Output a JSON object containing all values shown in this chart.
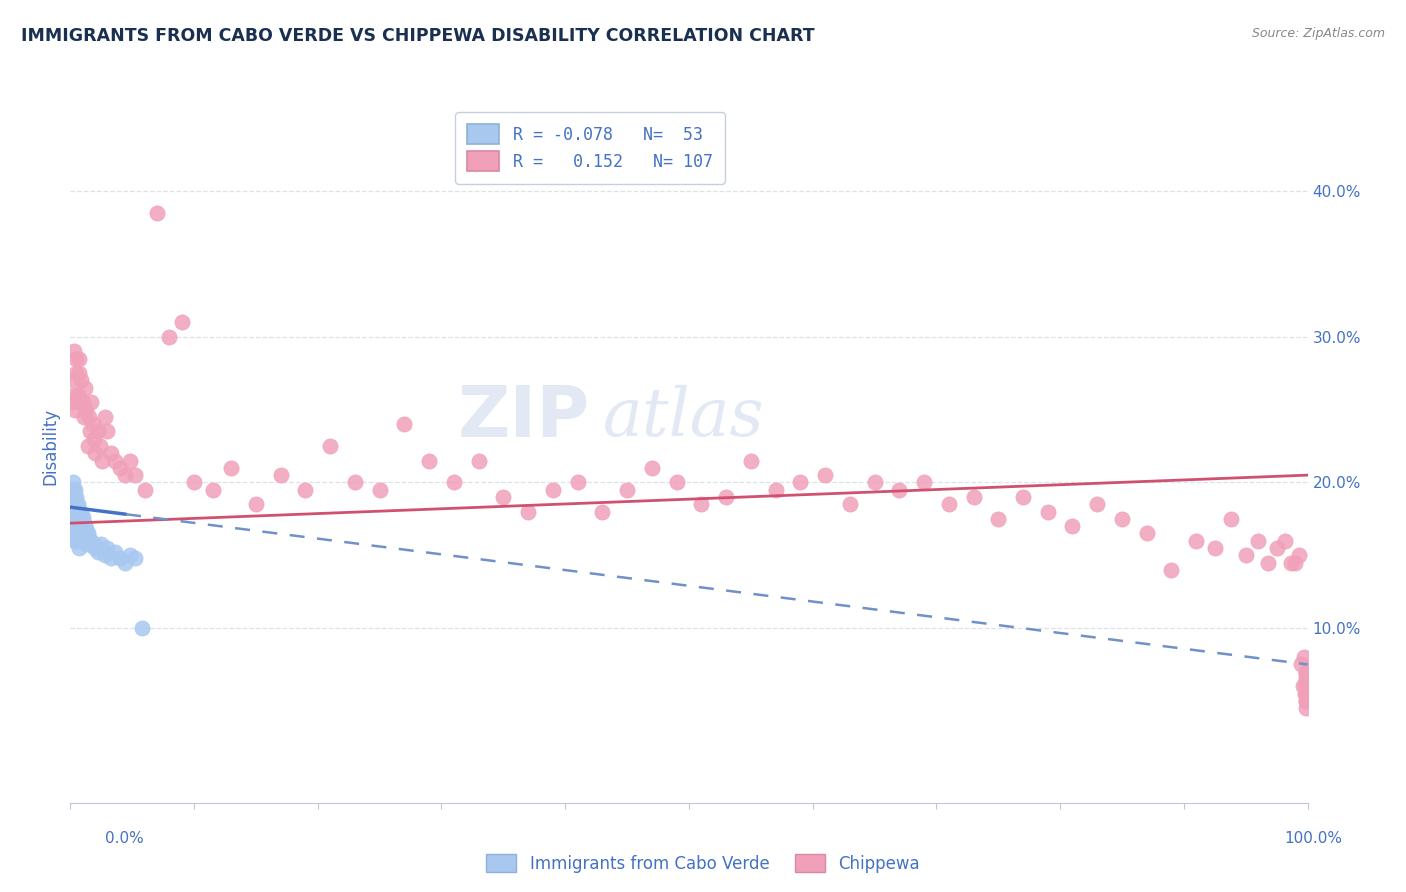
{
  "title": "IMMIGRANTS FROM CABO VERDE VS CHIPPEWA DISABILITY CORRELATION CHART",
  "source_text": "Source: ZipAtlas.com",
  "ylabel": "Disability",
  "ytick_labels": [
    "10.0%",
    "20.0%",
    "30.0%",
    "40.0%"
  ],
  "ytick_values": [
    0.1,
    0.2,
    0.3,
    0.4
  ],
  "xlim": [
    0.0,
    1.0
  ],
  "ylim": [
    -0.02,
    0.47
  ],
  "legend_blue_r": "-0.078",
  "legend_blue_n": "53",
  "legend_pink_r": "0.152",
  "legend_pink_n": "107",
  "blue_scatter_color": "#a8c8f0",
  "pink_scatter_color": "#f0a0b8",
  "blue_line_color": "#4472c4",
  "pink_line_color": "#d05070",
  "blue_dashed_color": "#7090c8",
  "watermark_zip": "ZIP",
  "watermark_atlas": "atlas",
  "watermark_color_zip": "#c8d8ee",
  "watermark_color_atlas": "#c8d8ee",
  "background_color": "#ffffff",
  "grid_color": "#d8dfe8",
  "title_color": "#1a3050",
  "axis_label_color": "#4472c4",
  "blue_scatter_x": [
    0.001,
    0.001,
    0.002,
    0.002,
    0.002,
    0.003,
    0.003,
    0.003,
    0.003,
    0.004,
    0.004,
    0.004,
    0.004,
    0.005,
    0.005,
    0.005,
    0.005,
    0.006,
    0.006,
    0.006,
    0.007,
    0.007,
    0.007,
    0.007,
    0.008,
    0.008,
    0.009,
    0.009,
    0.01,
    0.01,
    0.011,
    0.012,
    0.012,
    0.013,
    0.013,
    0.014,
    0.015,
    0.016,
    0.017,
    0.018,
    0.019,
    0.02,
    0.022,
    0.025,
    0.028,
    0.03,
    0.033,
    0.036,
    0.04,
    0.044,
    0.048,
    0.052,
    0.058
  ],
  "blue_scatter_y": [
    0.195,
    0.185,
    0.2,
    0.19,
    0.175,
    0.195,
    0.185,
    0.17,
    0.165,
    0.195,
    0.185,
    0.175,
    0.16,
    0.19,
    0.18,
    0.17,
    0.16,
    0.185,
    0.178,
    0.165,
    0.182,
    0.175,
    0.168,
    0.155,
    0.18,
    0.172,
    0.178,
    0.165,
    0.176,
    0.165,
    0.172,
    0.17,
    0.16,
    0.168,
    0.158,
    0.165,
    0.162,
    0.158,
    0.16,
    0.156,
    0.158,
    0.155,
    0.152,
    0.158,
    0.15,
    0.155,
    0.148,
    0.152,
    0.148,
    0.145,
    0.15,
    0.148,
    0.1
  ],
  "pink_scatter_x": [
    0.001,
    0.002,
    0.003,
    0.003,
    0.004,
    0.005,
    0.005,
    0.006,
    0.007,
    0.007,
    0.008,
    0.009,
    0.01,
    0.011,
    0.012,
    0.013,
    0.014,
    0.015,
    0.016,
    0.017,
    0.018,
    0.019,
    0.02,
    0.022,
    0.024,
    0.026,
    0.028,
    0.03,
    0.033,
    0.036,
    0.04,
    0.044,
    0.048,
    0.052,
    0.06,
    0.07,
    0.08,
    0.09,
    0.1,
    0.115,
    0.13,
    0.15,
    0.17,
    0.19,
    0.21,
    0.23,
    0.25,
    0.27,
    0.29,
    0.31,
    0.33,
    0.35,
    0.37,
    0.39,
    0.41,
    0.43,
    0.45,
    0.47,
    0.49,
    0.51,
    0.53,
    0.55,
    0.57,
    0.59,
    0.61,
    0.63,
    0.65,
    0.67,
    0.69,
    0.71,
    0.73,
    0.75,
    0.77,
    0.79,
    0.81,
    0.83,
    0.85,
    0.87,
    0.89,
    0.91,
    0.925,
    0.938,
    0.95,
    0.96,
    0.968,
    0.975,
    0.982,
    0.987,
    0.99,
    0.993,
    0.995,
    0.996,
    0.997,
    0.998,
    0.999,
    0.999,
    0.999,
    0.999,
    0.999,
    0.999,
    0.999,
    0.999,
    0.999,
    0.999,
    0.999,
    0.999,
    0.999
  ],
  "pink_scatter_y": [
    0.255,
    0.27,
    0.26,
    0.29,
    0.25,
    0.285,
    0.275,
    0.26,
    0.285,
    0.275,
    0.255,
    0.27,
    0.255,
    0.245,
    0.265,
    0.25,
    0.225,
    0.245,
    0.235,
    0.255,
    0.24,
    0.23,
    0.22,
    0.235,
    0.225,
    0.215,
    0.245,
    0.235,
    0.22,
    0.215,
    0.21,
    0.205,
    0.215,
    0.205,
    0.195,
    0.385,
    0.3,
    0.31,
    0.2,
    0.195,
    0.21,
    0.185,
    0.205,
    0.195,
    0.225,
    0.2,
    0.195,
    0.24,
    0.215,
    0.2,
    0.215,
    0.19,
    0.18,
    0.195,
    0.2,
    0.18,
    0.195,
    0.21,
    0.2,
    0.185,
    0.19,
    0.215,
    0.195,
    0.2,
    0.205,
    0.185,
    0.2,
    0.195,
    0.2,
    0.185,
    0.19,
    0.175,
    0.19,
    0.18,
    0.17,
    0.185,
    0.175,
    0.165,
    0.14,
    0.16,
    0.155,
    0.175,
    0.15,
    0.16,
    0.145,
    0.155,
    0.16,
    0.145,
    0.145,
    0.15,
    0.075,
    0.06,
    0.08,
    0.055,
    0.05,
    0.065,
    0.06,
    0.07,
    0.055,
    0.055,
    0.068,
    0.06,
    0.045,
    0.06,
    0.07,
    0.05,
    0.062
  ],
  "blue_line_x0": 0.0,
  "blue_line_x_solid_end": 0.045,
  "blue_line_x1": 1.0,
  "blue_line_y0": 0.183,
  "blue_line_y1": 0.075,
  "pink_line_x0": 0.0,
  "pink_line_x1": 1.0,
  "pink_line_y0": 0.172,
  "pink_line_y1": 0.205
}
